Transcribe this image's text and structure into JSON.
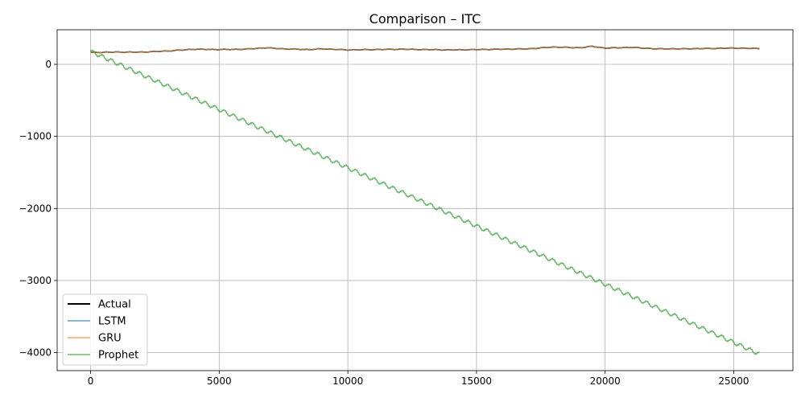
{
  "chart_data": {
    "type": "line",
    "title": "Comparison – ITC",
    "xlabel": "",
    "ylabel": "",
    "xlim": [
      -1300,
      27300
    ],
    "ylim": [
      -4250,
      480
    ],
    "xticks": [
      0,
      5000,
      10000,
      15000,
      20000,
      25000
    ],
    "yticks": [
      0,
      -1000,
      -2000,
      -3000,
      -4000
    ],
    "xtick_labels": [
      "0",
      "5000",
      "10000",
      "15000",
      "20000",
      "25000"
    ],
    "ytick_labels": [
      "0",
      "−1000",
      "−2000",
      "−3000",
      "−4000"
    ],
    "grid": true,
    "legend_position": "lower-left",
    "series": [
      {
        "name": "Actual",
        "color": "#000000",
        "x": [
          0,
          1000,
          2000,
          3000,
          4000,
          5000,
          6000,
          6800,
          7500,
          8500,
          9000,
          10000,
          11000,
          12000,
          13000,
          14000,
          15000,
          16000,
          17000,
          18000,
          18500,
          19000,
          19500,
          20000,
          21000,
          22000,
          23000,
          24000,
          25000,
          26000
        ],
        "values": [
          165,
          170,
          170,
          185,
          210,
          205,
          210,
          230,
          215,
          205,
          215,
          200,
          205,
          210,
          205,
          200,
          205,
          210,
          215,
          240,
          235,
          230,
          250,
          225,
          235,
          215,
          215,
          220,
          225,
          220
        ]
      },
      {
        "name": "LSTM",
        "color": "#1f77b4",
        "x": [
          0,
          1000,
          2000,
          3000,
          4000,
          5000,
          6000,
          6800,
          7500,
          8500,
          9000,
          10000,
          11000,
          12000,
          13000,
          14000,
          15000,
          16000,
          17000,
          18000,
          18500,
          19000,
          19500,
          20000,
          21000,
          22000,
          23000,
          24000,
          25000,
          26000
        ],
        "values": [
          165,
          170,
          170,
          185,
          210,
          205,
          210,
          230,
          215,
          205,
          215,
          200,
          205,
          210,
          205,
          200,
          205,
          210,
          215,
          240,
          235,
          230,
          250,
          225,
          235,
          215,
          215,
          220,
          225,
          220
        ]
      },
      {
        "name": "GRU",
        "color": "#ff7f0e",
        "x": [
          0,
          1000,
          2000,
          3000,
          4000,
          5000,
          6000,
          6800,
          7500,
          8500,
          9000,
          10000,
          11000,
          12000,
          13000,
          14000,
          15000,
          16000,
          17000,
          18000,
          18500,
          19000,
          19500,
          20000,
          21000,
          22000,
          23000,
          24000,
          25000,
          26000
        ],
        "values": [
          165,
          170,
          170,
          185,
          210,
          205,
          210,
          230,
          215,
          205,
          215,
          200,
          205,
          210,
          205,
          200,
          205,
          210,
          215,
          240,
          235,
          230,
          250,
          225,
          235,
          215,
          215,
          220,
          225,
          220
        ]
      },
      {
        "name": "Prophet",
        "color": "#2ca02c",
        "x": [
          0,
          26000
        ],
        "values": [
          180,
          -4020
        ],
        "seasonal_amplitude": 25,
        "seasonal_period": 365
      }
    ]
  }
}
